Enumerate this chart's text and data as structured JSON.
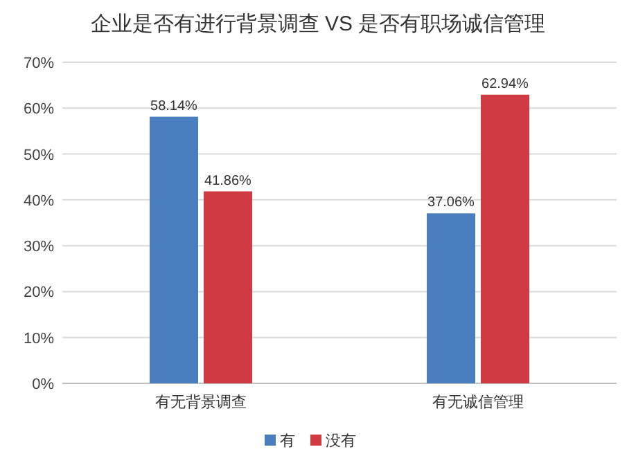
{
  "chart_data": {
    "type": "bar",
    "title": "企业是否有进行背景调查 VS 是否有职场诚信管理",
    "categories": [
      "有无背景调查",
      "有无诚信管理"
    ],
    "series": [
      {
        "name": "有",
        "color": "#4a7ebf",
        "values": [
          58.14,
          37.06
        ],
        "value_labels": [
          "58.14%",
          "37.06%"
        ]
      },
      {
        "name": "没有",
        "color": "#cf3a43",
        "values": [
          41.86,
          62.94
        ],
        "value_labels": [
          "41.86%",
          "62.94%"
        ]
      }
    ],
    "ylim": [
      0,
      70
    ],
    "yticks": [
      {
        "value": 0,
        "label": "0%"
      },
      {
        "value": 10,
        "label": "10%"
      },
      {
        "value": 20,
        "label": "20%"
      },
      {
        "value": 30,
        "label": "30%"
      },
      {
        "value": 40,
        "label": "40%"
      },
      {
        "value": 50,
        "label": "50%"
      },
      {
        "value": 60,
        "label": "60%"
      },
      {
        "value": 70,
        "label": "70%"
      }
    ],
    "grid": "y",
    "legend": "bottom"
  }
}
